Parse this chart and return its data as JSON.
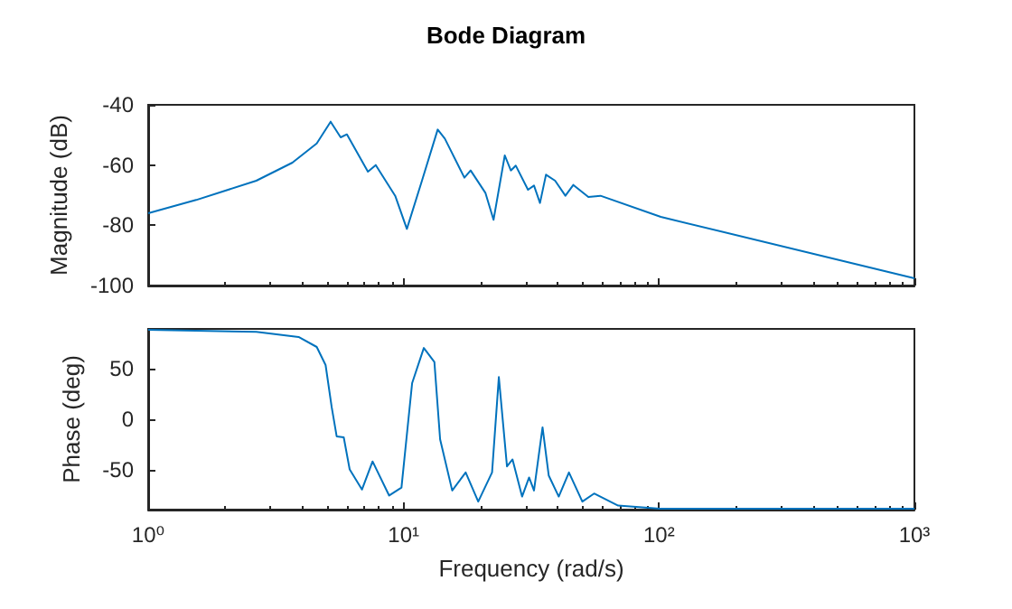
{
  "chart_data": [
    {
      "type": "line",
      "title": "Bode Diagram",
      "ylabel": "Magnitude (dB)",
      "log": "x",
      "tick_labels": "y",
      "color": "#0072bd",
      "xlim": [
        1,
        1000
      ],
      "xticks": [
        {
          "value": 1,
          "label": null
        },
        {
          "value": 10,
          "label": null
        },
        {
          "value": 100,
          "label": null
        },
        {
          "value": 1000,
          "label": null
        }
      ],
      "ylim": [
        -100,
        -40
      ],
      "yticks": [
        -100,
        -80,
        -60,
        -40
      ],
      "x": [
        1,
        1.54,
        2.65,
        3.67,
        4.57,
        5.18,
        5.67,
        6.0,
        7.25,
        7.78,
        9.27,
        10.3,
        11.8,
        13.6,
        14.5,
        17.3,
        18.3,
        20.9,
        22.5,
        24.9,
        26.3,
        27.5,
        30.7,
        32.4,
        34.2,
        36.1,
        39.2,
        43,
        46.2,
        52.9,
        59,
        101.6,
        1000
      ],
      "values": [
        -76,
        -71.6,
        -65.2,
        -59.2,
        -52.8,
        -45.6,
        -50.8,
        -49.8,
        -62.2,
        -60,
        -70.2,
        -81.2,
        -65.2,
        -48.2,
        -51.2,
        -64.2,
        -61.8,
        -69.2,
        -78.2,
        -56.8,
        -61.8,
        -60.2,
        -68.2,
        -66.8,
        -72.6,
        -63.2,
        -65.2,
        -70.2,
        -66.6,
        -70.6,
        -70.2,
        -77.2,
        -97.6
      ]
    },
    {
      "type": "line",
      "xlabel": "Frequency (rad/s)",
      "ylabel": "Phase (deg)",
      "log": "x",
      "color": "#0072bd",
      "xlim": [
        1,
        1000
      ],
      "xticks": [
        {
          "value": 1,
          "label": "10⁰"
        },
        {
          "value": 10,
          "label": "10¹"
        },
        {
          "value": 100,
          "label": "10²"
        },
        {
          "value": 1000,
          "label": "10³"
        }
      ],
      "ylim": [
        -90,
        90
      ],
      "yticks": [
        -50,
        0,
        50
      ],
      "x": [
        1,
        2.65,
        3.88,
        4.57,
        4.95,
        5.23,
        5.47,
        5.83,
        6.15,
        6.87,
        7.56,
        8.78,
        9.81,
        10.8,
        12,
        13.2,
        13.9,
        15.5,
        17.5,
        19.6,
        22.2,
        23.6,
        25.4,
        26.7,
        29.1,
        31,
        32.4,
        35,
        37,
        40.5,
        44.4,
        50.1,
        55.7,
        69.2,
        101,
        1000
      ],
      "values": [
        89,
        87,
        82,
        72,
        54,
        12,
        -17,
        -18,
        -50,
        -70,
        -42,
        -76,
        -68,
        36,
        71,
        57,
        -20,
        -71,
        -53,
        -82,
        -53,
        42,
        -47,
        -40,
        -77,
        -58,
        -71,
        -8,
        -56,
        -77,
        -53,
        -82,
        -74,
        -86,
        -89,
        -89
      ]
    }
  ]
}
